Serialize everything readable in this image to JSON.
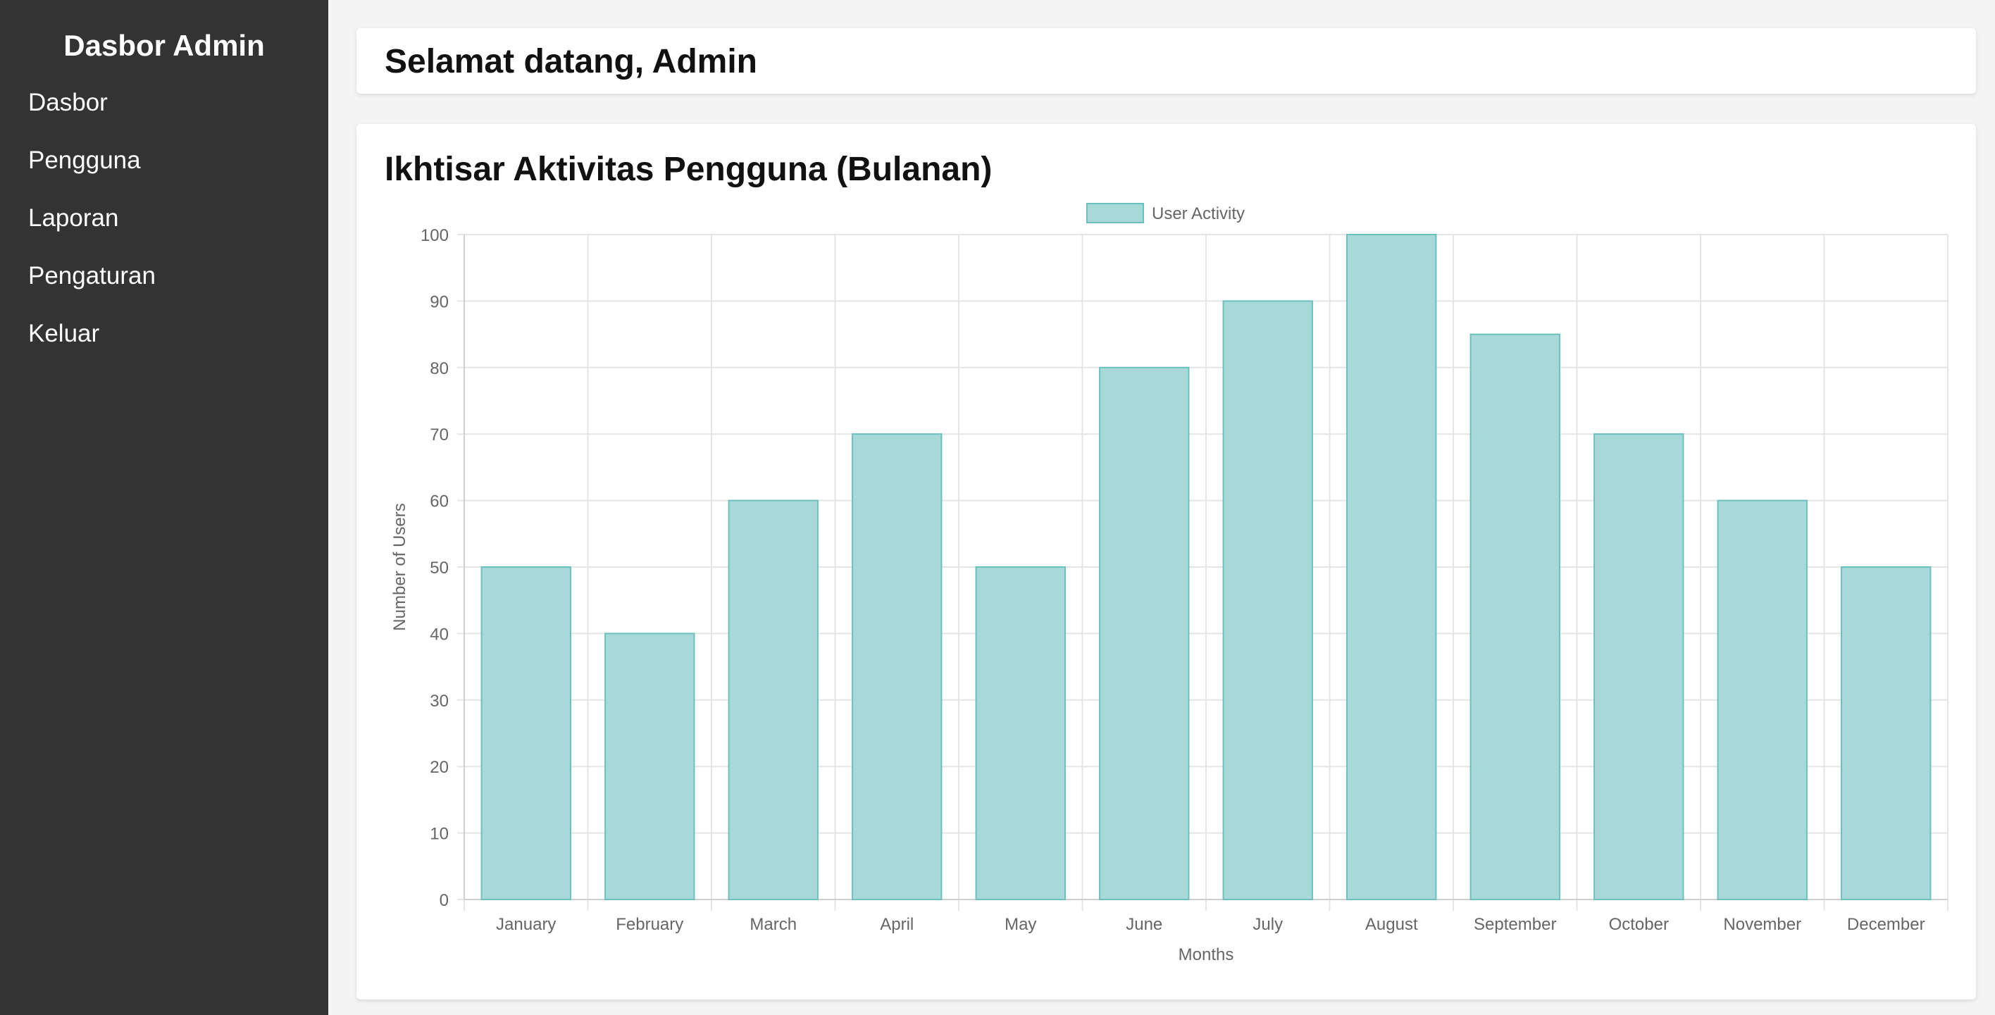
{
  "sidebar": {
    "title": "Dasbor Admin",
    "items": [
      {
        "label": "Dasbor"
      },
      {
        "label": "Pengguna"
      },
      {
        "label": "Laporan"
      },
      {
        "label": "Pengaturan"
      },
      {
        "label": "Keluar"
      }
    ]
  },
  "header": {
    "title": "Selamat datang, Admin"
  },
  "main": {
    "chart_title": "Ikhtisar Aktivitas Pengguna (Bulanan)"
  },
  "colors": {
    "sidebar_bg": "#333333",
    "page_bg": "#f4f4f4",
    "bar_fill": "#a6d9d8",
    "bar_border": "#6cc0bd",
    "grid": "#e5e5e5",
    "text": "#666666"
  },
  "chart_data": {
    "type": "bar",
    "categories": [
      "January",
      "February",
      "March",
      "April",
      "May",
      "June",
      "July",
      "August",
      "September",
      "October",
      "November",
      "December"
    ],
    "series": [
      {
        "name": "User Activity",
        "values": [
          50,
          40,
          60,
          70,
          50,
          80,
          90,
          100,
          85,
          70,
          60,
          50
        ]
      }
    ],
    "xlabel": "Months",
    "ylabel": "Number of Users",
    "ylim": [
      0,
      100
    ],
    "yticks": [
      0,
      10,
      20,
      30,
      40,
      50,
      60,
      70,
      80,
      90,
      100
    ],
    "grid": true,
    "legend": "top-center"
  }
}
